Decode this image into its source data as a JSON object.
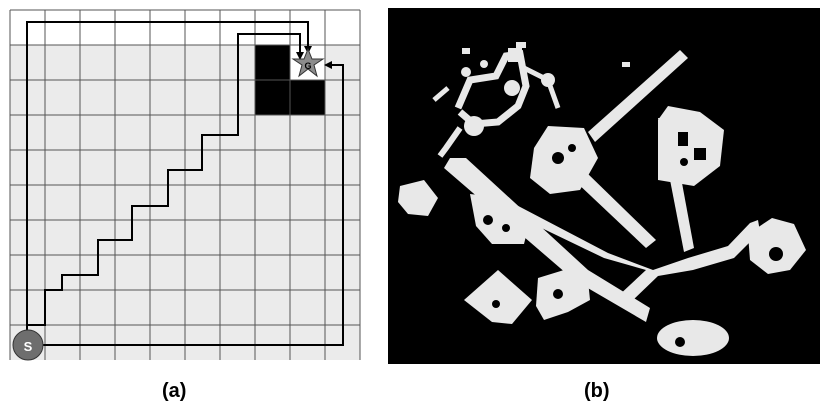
{
  "figure": {
    "panel_a": {
      "caption": "(a)",
      "grid": {
        "rows": 10,
        "cols": 10
      },
      "start_label": "S",
      "goal_label": "G",
      "colors": {
        "free": "#ebebeb",
        "obstacle": "#000000",
        "grid_line": "#555555",
        "start": "#6e6e6e",
        "goal": "#8c8c8c"
      }
    },
    "panel_b": {
      "caption": "(b)",
      "colors": {
        "background": "#000000",
        "free_space": "#e8e8e8"
      }
    }
  }
}
